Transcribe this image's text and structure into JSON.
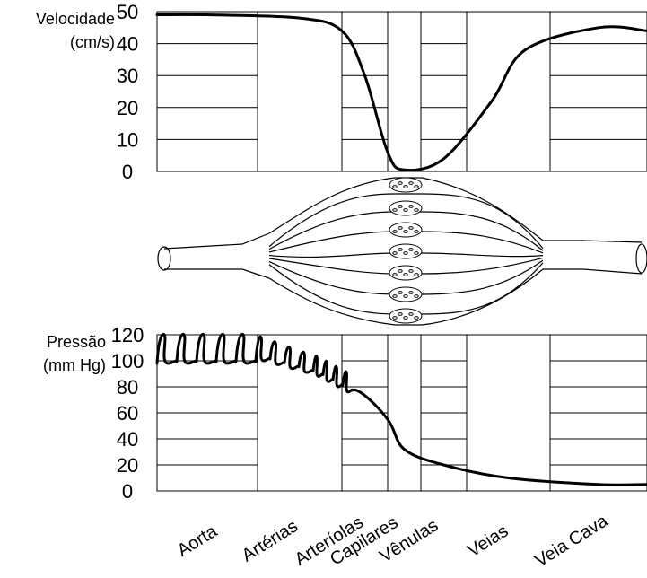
{
  "chart_data": [
    {
      "type": "line",
      "ylabel": [
        "Velocidade",
        "(cm/s)"
      ],
      "ylim": [
        0,
        50
      ],
      "yticks": [
        0,
        10,
        20,
        30,
        40,
        50
      ],
      "grid": true,
      "categories": [
        "Aorta",
        "Artérias",
        "Arteríolas",
        "Capilares",
        "Vênulas",
        "Veias",
        "Veia Cava"
      ],
      "series": [
        {
          "values": [
            {
              "segment": "Aorta",
              "position": 0.0,
              "y": 49
            },
            {
              "segment": "Aorta",
              "position": 0.5,
              "y": 49
            },
            {
              "segment": "Artérias",
              "position": 0.5,
              "y": 48
            },
            {
              "segment": "Arteríolas",
              "position": 0.0,
              "y": 44
            },
            {
              "segment": "Arteríolas",
              "position": 0.5,
              "y": 30
            },
            {
              "segment": "Arteríolas",
              "position": 1.0,
              "y": 6
            },
            {
              "segment": "Capilares",
              "position": 0.5,
              "y": 0.5
            },
            {
              "segment": "Vênulas",
              "position": 0.5,
              "y": 4
            },
            {
              "segment": "Veias",
              "position": 0.3,
              "y": 22
            },
            {
              "segment": "Veias",
              "position": 0.7,
              "y": 38
            },
            {
              "segment": "Veia Cava",
              "position": 0.5,
              "y": 45
            },
            {
              "segment": "Veia Cava",
              "position": 1.0,
              "y": 44
            }
          ]
        }
      ]
    },
    {
      "type": "line",
      "ylabel": [
        "Pressão",
        "(mm Hg)"
      ],
      "ylim": [
        0,
        120
      ],
      "yticks": [
        0,
        20,
        40,
        60,
        80,
        100,
        120
      ],
      "grid": true,
      "categories": [
        "Aorta",
        "Artérias",
        "Arteríolas",
        "Capilares",
        "Vênulas",
        "Veias",
        "Veia Cava"
      ],
      "series": [
        {
          "values": [
            {
              "segment": "Aorta",
              "position": 0.0,
              "y": 97,
              "oscillation": [
                98,
                120
              ]
            },
            {
              "segment": "Artérias",
              "position": 0.5,
              "y": 100,
              "oscillation": [
                100,
                118
              ]
            },
            {
              "segment": "Arteríolas",
              "position": 0.0,
              "y": 93,
              "oscillation": [
                85,
                103
              ]
            },
            {
              "segment": "Arteríolas",
              "position": 1.0,
              "y": 55
            },
            {
              "segment": "Capilares",
              "position": 0.5,
              "y": 32
            },
            {
              "segment": "Vênulas",
              "position": 0.5,
              "y": 20
            },
            {
              "segment": "Veias",
              "position": 0.5,
              "y": 10
            },
            {
              "segment": "Veia Cava",
              "position": 0.5,
              "y": 5
            },
            {
              "segment": "Veia Cava",
              "position": 1.0,
              "y": 5
            }
          ]
        }
      ]
    }
  ],
  "vessel_diagram": {
    "icon": "blood-vessel-network-icon"
  }
}
